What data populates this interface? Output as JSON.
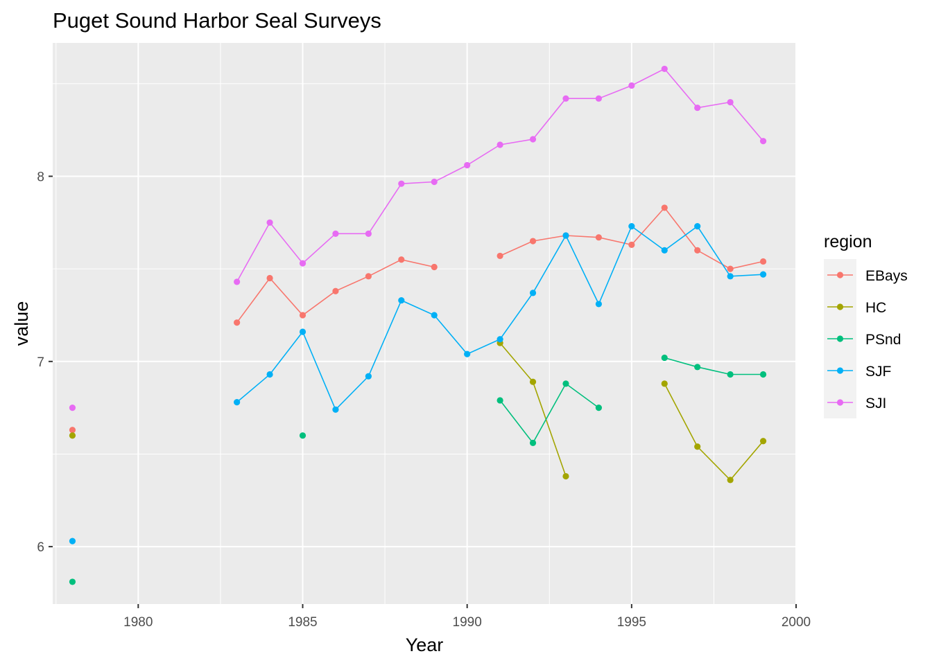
{
  "chart_data": {
    "type": "line",
    "title": "Puget Sound Harbor Seal Surveys",
    "xlabel": "Year",
    "ylabel": "value",
    "xlim": [
      1977.4,
      2000.0
    ],
    "ylim": [
      5.69,
      8.72
    ],
    "x_ticks": [
      1980,
      1985,
      1990,
      1995,
      2000
    ],
    "y_ticks": [
      6,
      7,
      8
    ],
    "x_tick_labels": [
      "1980",
      "1985",
      "1990",
      "1995",
      "2000"
    ],
    "y_tick_labels": [
      "6",
      "7",
      "8"
    ],
    "grid": true,
    "legend": {
      "title": "region",
      "position": "right"
    },
    "series": [
      {
        "name": "EBays",
        "color": "#F8766D",
        "points": [
          [
            1978,
            6.63
          ],
          [
            1983,
            7.21
          ],
          [
            1984,
            7.45
          ],
          [
            1985,
            7.25
          ],
          [
            1986,
            7.38
          ],
          [
            1987,
            7.46
          ],
          [
            1988,
            7.55
          ],
          [
            1989,
            7.51
          ],
          [
            1991,
            7.57
          ],
          [
            1992,
            7.65
          ],
          [
            1993,
            7.68
          ],
          [
            1994,
            7.67
          ],
          [
            1995,
            7.63
          ],
          [
            1996,
            7.83
          ],
          [
            1997,
            7.6
          ],
          [
            1998,
            7.5
          ],
          [
            1999,
            7.54
          ]
        ],
        "segments": [
          [
            1983,
            1989
          ],
          [
            1991,
            1999
          ]
        ]
      },
      {
        "name": "HC",
        "color": "#A3A500",
        "points": [
          [
            1978,
            6.6
          ],
          [
            1991,
            7.1
          ],
          [
            1992,
            6.89
          ],
          [
            1993,
            6.38
          ],
          [
            1996,
            6.88
          ],
          [
            1997,
            6.54
          ],
          [
            1998,
            6.36
          ],
          [
            1999,
            6.57
          ]
        ],
        "segments": [
          [
            1991,
            1993
          ],
          [
            1996,
            1999
          ]
        ]
      },
      {
        "name": "PSnd",
        "color": "#00BF7D",
        "points": [
          [
            1978,
            5.81
          ],
          [
            1985,
            6.6
          ],
          [
            1991,
            6.79
          ],
          [
            1992,
            6.56
          ],
          [
            1993,
            6.88
          ],
          [
            1994,
            6.75
          ],
          [
            1996,
            7.02
          ],
          [
            1997,
            6.97
          ],
          [
            1998,
            6.93
          ],
          [
            1999,
            6.93
          ]
        ],
        "segments": [
          [
            1991,
            1994
          ],
          [
            1996,
            1999
          ]
        ]
      },
      {
        "name": "SJF",
        "color": "#00B0F6",
        "points": [
          [
            1978,
            6.03
          ],
          [
            1983,
            6.78
          ],
          [
            1984,
            6.93
          ],
          [
            1985,
            7.16
          ],
          [
            1986,
            6.74
          ],
          [
            1987,
            6.92
          ],
          [
            1988,
            7.33
          ],
          [
            1989,
            7.25
          ],
          [
            1990,
            7.04
          ],
          [
            1991,
            7.12
          ],
          [
            1992,
            7.37
          ],
          [
            1993,
            7.68
          ],
          [
            1994,
            7.31
          ],
          [
            1995,
            7.73
          ],
          [
            1996,
            7.6
          ],
          [
            1997,
            7.73
          ],
          [
            1998,
            7.46
          ],
          [
            1999,
            7.47
          ]
        ],
        "segments": [
          [
            1983,
            1999
          ]
        ]
      },
      {
        "name": "SJI",
        "color": "#E76BF3",
        "points": [
          [
            1978,
            6.75
          ],
          [
            1983,
            7.43
          ],
          [
            1984,
            7.75
          ],
          [
            1985,
            7.53
          ],
          [
            1986,
            7.69
          ],
          [
            1987,
            7.69
          ],
          [
            1988,
            7.96
          ],
          [
            1989,
            7.97
          ],
          [
            1990,
            8.06
          ],
          [
            1991,
            8.17
          ],
          [
            1992,
            8.2
          ],
          [
            1993,
            8.42
          ],
          [
            1994,
            8.42
          ],
          [
            1995,
            8.49
          ],
          [
            1996,
            8.58
          ],
          [
            1997,
            8.37
          ],
          [
            1998,
            8.4
          ],
          [
            1999,
            8.19
          ]
        ],
        "segments": [
          [
            1983,
            1999
          ]
        ]
      }
    ]
  }
}
